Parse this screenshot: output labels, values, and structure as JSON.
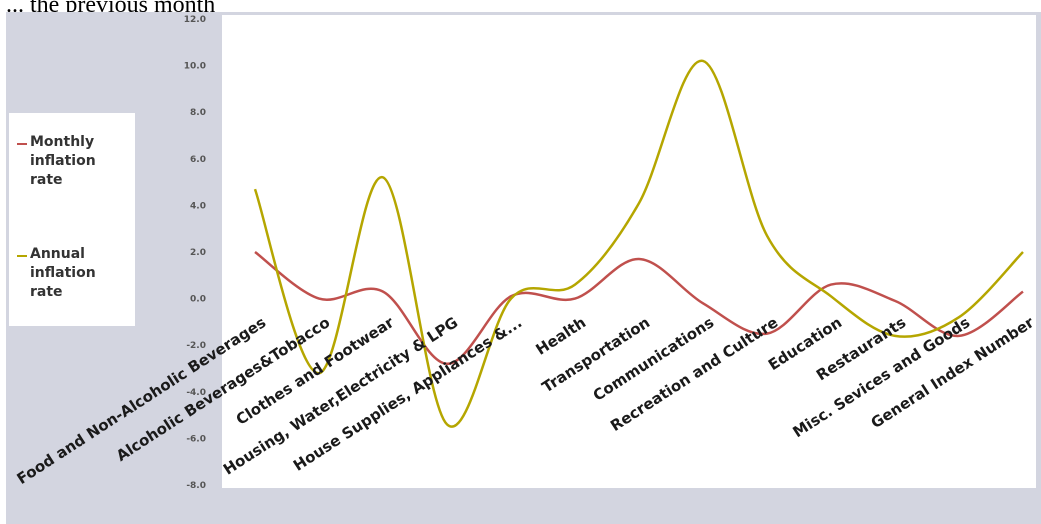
{
  "caption": "... the previous month",
  "chart_data": {
    "type": "line",
    "title": "",
    "xlabel": "",
    "ylabel": "",
    "ylim": [
      -8,
      12
    ],
    "yticks": [
      "12.0",
      "10.0",
      "8.0",
      "6.0",
      "4.0",
      "2.0",
      "0.0",
      "-2.0",
      "-4.0",
      "-6.0",
      "-8.0"
    ],
    "categories": [
      "Food and Non-Alcoholic Beverages",
      "Alcoholic Beverages&Tobacco",
      "Clothes and Footwear",
      "Housing, Water,Electricity & LPG",
      "House Supplies, Appliances &...",
      "Health",
      "Transportation",
      "Communications",
      "Recreation and Culture",
      "Education",
      "Restaurants",
      "Misc. Sevices and Goods",
      "General Index Number"
    ],
    "series": [
      {
        "name": "Monthly inflation rate",
        "color": "#c0504d",
        "values": [
          2.0,
          0.0,
          0.3,
          -2.8,
          0.1,
          0.0,
          1.7,
          -0.2,
          -1.5,
          0.6,
          -0.1,
          -1.6,
          0.3
        ]
      },
      {
        "name": "Annual inflation rate",
        "color": "#b5a600",
        "values": [
          4.7,
          -3.2,
          5.2,
          -5.4,
          0.0,
          0.6,
          4.1,
          10.2,
          2.7,
          0.1,
          -1.6,
          -0.8,
          2.0
        ]
      }
    ],
    "grid": false,
    "legend": "left"
  }
}
